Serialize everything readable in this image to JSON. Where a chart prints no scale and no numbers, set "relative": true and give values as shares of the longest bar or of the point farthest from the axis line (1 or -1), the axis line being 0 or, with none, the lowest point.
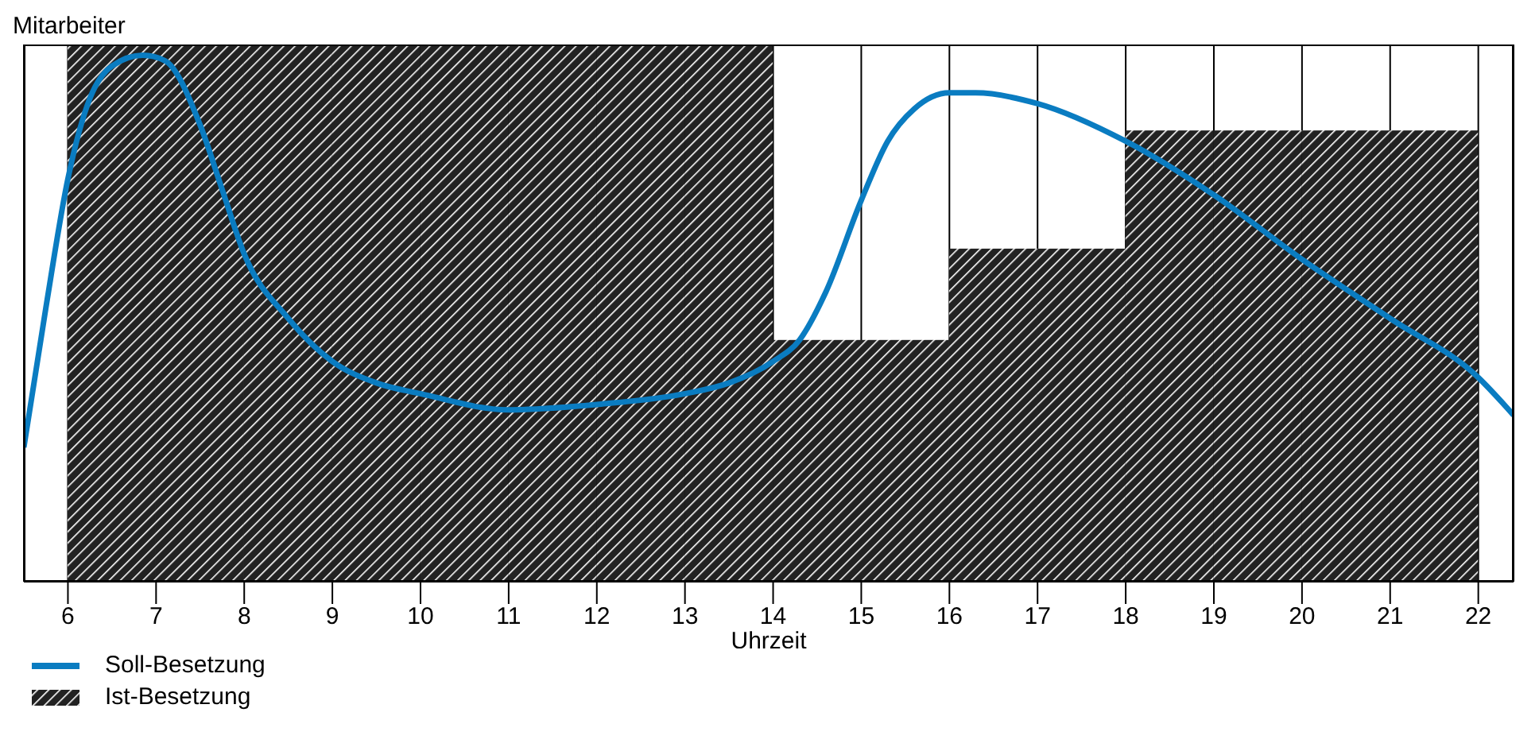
{
  "chart_data": {
    "type": "bar",
    "relative": true,
    "ylabel": "Mitarbeiter",
    "xlabel": "Uhrzeit",
    "xlim": [
      5.5,
      22.4
    ],
    "xticks": [
      6,
      7,
      8,
      9,
      10,
      11,
      12,
      13,
      14,
      15,
      16,
      17,
      18,
      19,
      20,
      21,
      22
    ],
    "grid": "x",
    "legend": "bottom left",
    "series": [
      {
        "name": "Soll-Besetzung",
        "type": "line",
        "color": "#0a7cc1",
        "x": [
          5.5,
          5.75,
          6,
          6.25,
          6.5,
          6.85,
          7.1,
          7.5,
          7.75,
          8,
          8.5,
          9,
          9.5,
          10,
          11,
          12,
          13,
          13.5,
          14,
          14.3,
          14.6,
          15,
          15.3,
          15.6,
          16,
          16.3,
          17,
          18,
          19,
          20,
          21,
          22,
          22.4
        ],
        "values": [
          0.25,
          0.51,
          0.75,
          0.9,
          0.96,
          0.98,
          0.97,
          0.85,
          0.73,
          0.61,
          0.49,
          0.41,
          0.37,
          0.35,
          0.32,
          0.33,
          0.35,
          0.37,
          0.41,
          0.45,
          0.54,
          0.71,
          0.82,
          0.88,
          0.91,
          0.91,
          0.89,
          0.82,
          0.72,
          0.6,
          0.49,
          0.38,
          0.31
        ]
      },
      {
        "name": "Ist-Besetzung",
        "color": "#222222",
        "x": [
          6.5,
          7.5,
          8.5,
          9.5,
          10.5,
          11.5,
          12.5,
          13.5,
          14.5,
          15.5,
          16.5,
          17.5,
          18.5,
          19.5,
          20.5,
          21.5
        ],
        "values": [
          1,
          1,
          1,
          1,
          1,
          1,
          1,
          1,
          0.45,
          0.45,
          0.62,
          0.62,
          0.84,
          0.84,
          0.84,
          0.84
        ]
      }
    ]
  }
}
